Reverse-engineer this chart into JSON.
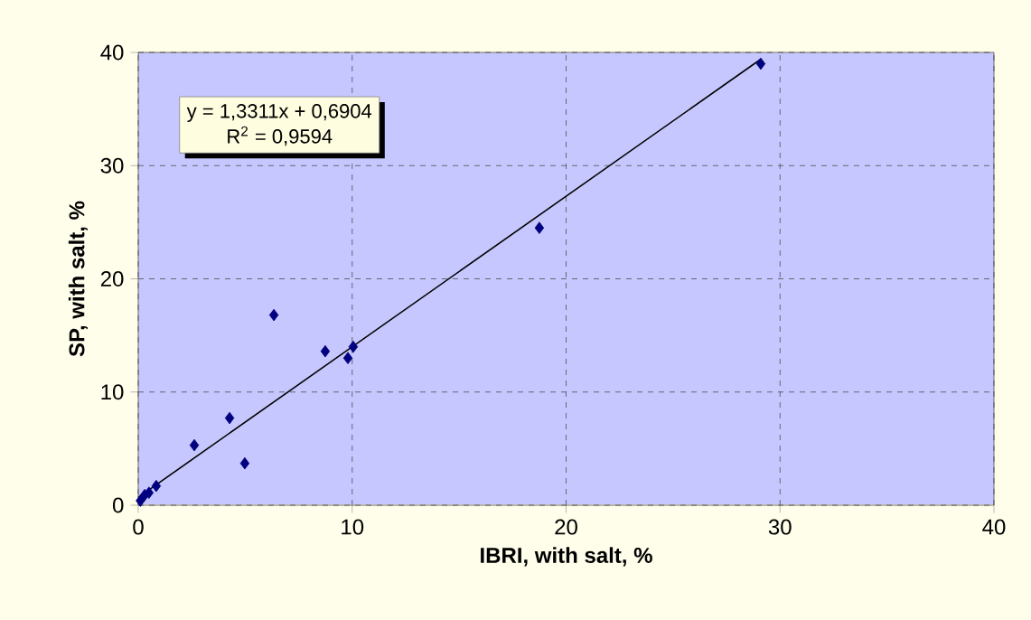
{
  "chart_data": {
    "type": "scatter",
    "xlabel": "IBRI, with salt, %",
    "ylabel": "SP, with salt, %",
    "xlim": [
      0,
      40
    ],
    "ylim": [
      0,
      40
    ],
    "xticks": [
      0,
      10,
      20,
      30,
      40
    ],
    "yticks": [
      0,
      10,
      20,
      30,
      40
    ],
    "grid": true,
    "annotations": [
      "y = 1,3311x + 0,6904",
      "R$^{2}$ = 0,9594"
    ],
    "series": [
      {
        "marker": "diamond",
        "color": "#000080",
        "x": [
          29.1,
          18.75,
          6.34,
          8.74,
          10.05,
          9.8,
          4.27,
          2.62,
          4.98,
          0.84,
          0.5,
          0.3,
          0.1
        ],
        "values": [
          39.0,
          24.5,
          16.8,
          13.6,
          14.0,
          13.0,
          7.7,
          5.3,
          3.7,
          1.7,
          1.1,
          0.9,
          0.4
        ]
      },
      {
        "type": "line",
        "marker": "none",
        "color": "#000000",
        "x": [
          0,
          29.1
        ],
        "values": [
          0.69,
          39.4
        ]
      }
    ]
  }
}
